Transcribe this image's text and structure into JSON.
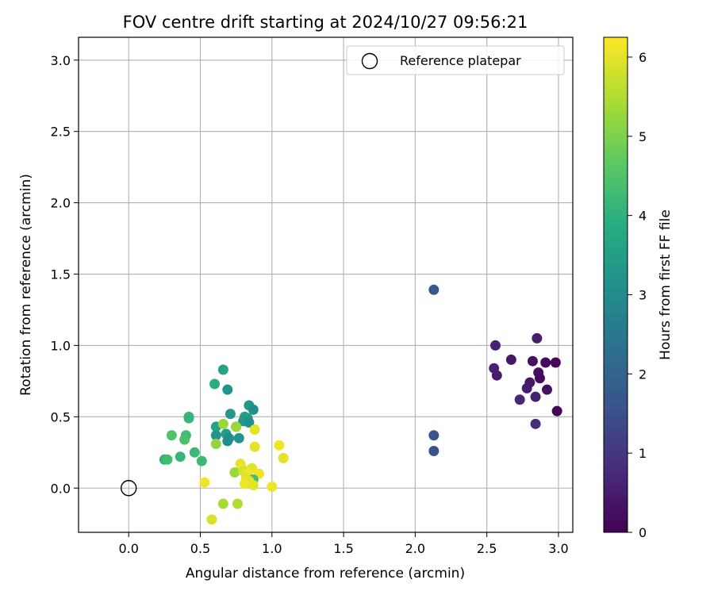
{
  "chart_data": {
    "type": "scatter",
    "title": "FOV centre drift starting at 2024/10/27 09:56:21",
    "xlabel": "Angular distance from reference (arcmin)",
    "ylabel": "Rotation from reference (arcmin)",
    "xlim": [
      -0.35,
      3.1
    ],
    "ylim": [
      -0.31,
      3.16
    ],
    "xticks": [
      0.0,
      0.5,
      1.0,
      1.5,
      2.0,
      2.5,
      3.0
    ],
    "xtick_labels": [
      "0.0",
      "0.5",
      "1.0",
      "1.5",
      "2.0",
      "2.5",
      "3.0"
    ],
    "yticks": [
      0.0,
      0.5,
      1.0,
      1.5,
      2.0,
      2.5,
      3.0
    ],
    "ytick_labels": [
      "0.0",
      "0.5",
      "1.0",
      "1.5",
      "2.0",
      "2.5",
      "3.0"
    ],
    "grid": true,
    "legend": {
      "position": "top-right",
      "entries": [
        "Reference platepar"
      ]
    },
    "colorbar": {
      "label": "Hours from first FF file",
      "colormap": "viridis",
      "range": [
        0,
        6.25
      ],
      "ticks": [
        0,
        1,
        2,
        3,
        4,
        5,
        6
      ],
      "tick_labels": [
        "0",
        "1",
        "2",
        "3",
        "4",
        "5",
        "6"
      ]
    },
    "reference": {
      "name": "Reference platepar",
      "x": 0.0,
      "y": 0.0
    },
    "series": [
      {
        "points": [
          [
            2.85,
            1.05,
            0.5
          ],
          [
            2.56,
            1.0,
            0.6
          ],
          [
            2.67,
            0.9,
            0.4
          ],
          [
            2.82,
            0.89,
            0.3
          ],
          [
            2.91,
            0.88,
            0.2
          ],
          [
            2.98,
            0.88,
            0.1
          ],
          [
            2.55,
            0.84,
            0.6
          ],
          [
            2.57,
            0.79,
            0.5
          ],
          [
            2.86,
            0.81,
            0.3
          ],
          [
            2.87,
            0.77,
            0.2
          ],
          [
            2.8,
            0.74,
            0.4
          ],
          [
            2.78,
            0.7,
            0.5
          ],
          [
            2.92,
            0.69,
            0.3
          ],
          [
            2.84,
            0.64,
            0.6
          ],
          [
            2.73,
            0.62,
            0.7
          ],
          [
            2.99,
            0.54,
            0.1
          ],
          [
            2.84,
            0.45,
            0.8
          ],
          [
            2.13,
            1.39,
            1.7
          ],
          [
            2.13,
            0.37,
            1.6
          ],
          [
            2.13,
            0.26,
            1.6
          ],
          [
            0.66,
            0.83,
            3.6
          ],
          [
            0.6,
            0.73,
            3.9
          ],
          [
            0.69,
            0.69,
            3.2
          ],
          [
            0.84,
            0.58,
            3.3
          ],
          [
            0.87,
            0.55,
            3.1
          ],
          [
            0.71,
            0.52,
            3.3
          ],
          [
            0.81,
            0.5,
            3.5
          ],
          [
            0.83,
            0.49,
            3.4
          ],
          [
            0.42,
            0.5,
            4.2
          ],
          [
            0.42,
            0.49,
            4.1
          ],
          [
            0.8,
            0.47,
            3.3
          ],
          [
            0.84,
            0.46,
            3.1
          ],
          [
            0.61,
            0.43,
            3.6
          ],
          [
            0.75,
            0.43,
            3.0
          ],
          [
            0.68,
            0.38,
            3.4
          ],
          [
            0.61,
            0.37,
            3.2
          ],
          [
            0.7,
            0.35,
            3.1
          ],
          [
            0.77,
            0.35,
            3.2
          ],
          [
            0.69,
            0.33,
            3.0
          ],
          [
            0.4,
            0.37,
            4.3
          ],
          [
            0.39,
            0.34,
            4.4
          ],
          [
            0.3,
            0.37,
            4.5
          ],
          [
            0.46,
            0.25,
            4.2
          ],
          [
            0.36,
            0.22,
            4.1
          ],
          [
            0.51,
            0.19,
            4.2
          ],
          [
            0.25,
            0.2,
            4.0
          ],
          [
            0.27,
            0.2,
            4.3
          ],
          [
            0.61,
            0.31,
            5.2
          ],
          [
            0.66,
            0.45,
            5.3
          ],
          [
            0.75,
            0.43,
            5.3
          ],
          [
            0.88,
            0.41,
            6.0
          ],
          [
            1.05,
            0.3,
            6.1
          ],
          [
            0.88,
            0.29,
            6.0
          ],
          [
            1.08,
            0.21,
            6.0
          ],
          [
            0.78,
            0.17,
            6.0
          ],
          [
            0.79,
            0.14,
            6.1
          ],
          [
            0.86,
            0.14,
            6.0
          ],
          [
            0.74,
            0.11,
            5.3
          ],
          [
            0.8,
            0.12,
            5.9
          ],
          [
            0.83,
            0.1,
            6.1
          ],
          [
            0.91,
            0.1,
            6.1
          ],
          [
            0.82,
            0.07,
            6.0
          ],
          [
            0.87,
            0.06,
            4.3
          ],
          [
            0.84,
            0.05,
            6.0
          ],
          [
            0.81,
            0.03,
            6.1
          ],
          [
            0.87,
            0.02,
            6.0
          ],
          [
            0.53,
            0.04,
            6.1
          ],
          [
            1.0,
            0.01,
            6.1
          ],
          [
            0.66,
            -0.11,
            5.4
          ],
          [
            0.76,
            -0.11,
            5.5
          ],
          [
            0.58,
            -0.22,
            5.9
          ]
        ]
      }
    ]
  }
}
